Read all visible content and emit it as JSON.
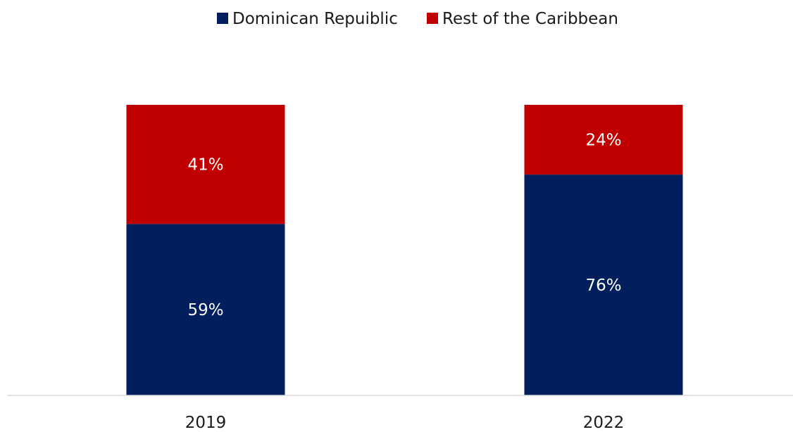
{
  "chart_data": {
    "type": "bar",
    "stacked": true,
    "percent_stacked": true,
    "categories": [
      "2019",
      "2022"
    ],
    "series": [
      {
        "name": "Dominican Repuiblic",
        "color": "#001f5c",
        "values": [
          59,
          76
        ],
        "labels": [
          "59%",
          "76%"
        ]
      },
      {
        "name": "Rest of the Caribbean",
        "color": "#c00000",
        "values": [
          41,
          24
        ],
        "labels": [
          "41%",
          "24%"
        ]
      }
    ],
    "ylim": [
      0,
      100
    ],
    "title": "",
    "xlabel": "",
    "ylabel": "",
    "legend_position": "top-center",
    "grid": false,
    "data_labels": true
  }
}
